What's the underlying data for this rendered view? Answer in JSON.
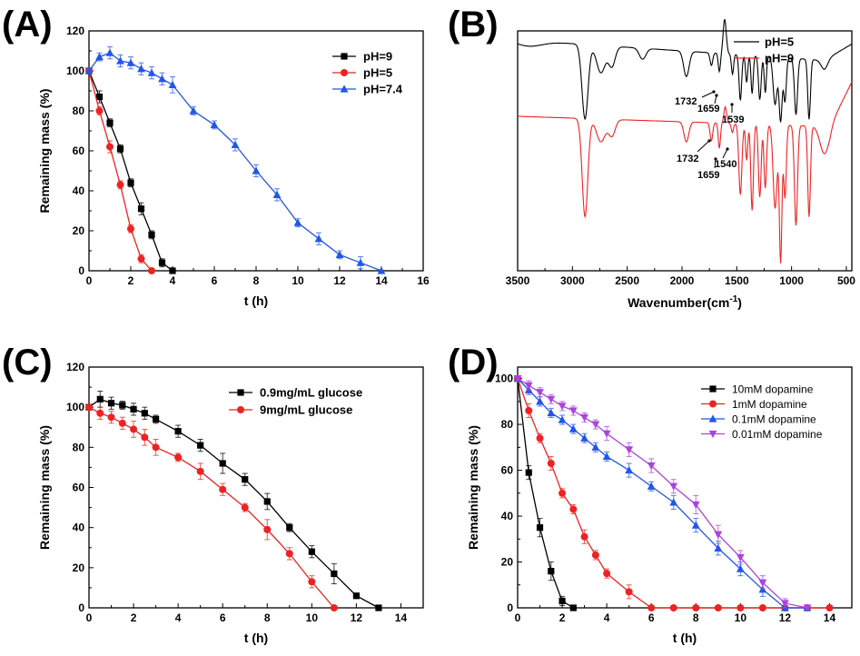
{
  "chart_data": [
    {
      "panel": "(A)",
      "type": "line",
      "xlabel": "t (h)",
      "ylabel": "Remaining mass (%)",
      "xlim": [
        0,
        16
      ],
      "ylim": [
        0,
        120
      ],
      "xticks": [
        0,
        2,
        4,
        6,
        8,
        10,
        12,
        14,
        16
      ],
      "yticks": [
        0,
        20,
        40,
        60,
        80,
        100,
        120
      ],
      "legend": "top-right",
      "series": [
        {
          "name": "pH=9",
          "color": "#000000",
          "marker": "square",
          "x": [
            0,
            0.5,
            1,
            1.5,
            2,
            2.5,
            3,
            3.5,
            4
          ],
          "y": [
            100,
            87,
            74,
            61,
            44,
            31,
            18,
            4,
            0
          ],
          "err": [
            0,
            3,
            2,
            2,
            2,
            3,
            2,
            2,
            0
          ]
        },
        {
          "name": "pH=5",
          "color": "#ee2222",
          "marker": "circle",
          "x": [
            0,
            0.5,
            1,
            1.5,
            2,
            2.5,
            3
          ],
          "y": [
            100,
            80,
            62,
            43,
            21,
            6,
            0
          ],
          "err": [
            0,
            2,
            3,
            2,
            2,
            2,
            0
          ]
        },
        {
          "name": "pH=7.4",
          "color": "#2255ee",
          "marker": "triangle",
          "x": [
            0,
            0.5,
            1,
            1.5,
            2,
            2.5,
            3,
            3.5,
            4,
            5,
            6,
            7,
            8,
            9,
            10,
            11,
            12,
            13,
            14
          ],
          "y": [
            100,
            107,
            109,
            105,
            104,
            101,
            99,
            96,
            93,
            80,
            73,
            63,
            50,
            38,
            24,
            16,
            8,
            4,
            0
          ],
          "err": [
            0,
            2,
            3,
            3,
            3,
            3,
            3,
            3,
            4,
            2,
            2,
            3,
            3,
            3,
            2,
            3,
            2,
            3,
            0
          ]
        }
      ]
    },
    {
      "panel": "(B)",
      "type": "line",
      "xlabel": "Wavenumber(cm",
      "xlabel_sup": "-1",
      "xlabel_end": ")",
      "xlim": [
        3500,
        450
      ],
      "xticks": [
        3500,
        3000,
        2500,
        2000,
        1500,
        1000,
        500
      ],
      "legend": "top-right",
      "series": [
        {
          "name": "pH=5",
          "color": "#000000"
        },
        {
          "name": "pH=9",
          "color": "#ee2222"
        }
      ],
      "annotations": [
        "1732",
        "1659",
        "1539",
        "1732",
        "1659",
        "1540"
      ]
    },
    {
      "panel": "(C)",
      "type": "line",
      "xlabel": "t (h)",
      "ylabel": "Remaining mass (%)",
      "xlim": [
        0,
        15
      ],
      "ylim": [
        0,
        120
      ],
      "xticks": [
        0,
        2,
        4,
        6,
        8,
        10,
        12,
        14
      ],
      "yticks": [
        0,
        20,
        40,
        60,
        80,
        100,
        120
      ],
      "legend": "top-right",
      "series": [
        {
          "name": "0.9mg/mL glucose",
          "color": "#000000",
          "marker": "square",
          "x": [
            0,
            0.5,
            1,
            1.5,
            2,
            2.5,
            3,
            4,
            5,
            6,
            7,
            8,
            9,
            10,
            11,
            12,
            13
          ],
          "y": [
            100,
            104,
            102,
            101,
            99,
            97,
            94,
            88,
            81,
            72,
            64,
            53,
            40,
            28,
            17,
            6,
            0
          ],
          "err": [
            0,
            4,
            3,
            2,
            3,
            3,
            2,
            3,
            3,
            5,
            3,
            4,
            2,
            3,
            5,
            1,
            0
          ]
        },
        {
          "name": "9mg/mL glucose",
          "color": "#ee2222",
          "marker": "circle",
          "x": [
            0,
            0.5,
            1,
            1.5,
            2,
            2.5,
            3,
            4,
            5,
            6,
            7,
            8,
            9,
            10,
            11
          ],
          "y": [
            100,
            97,
            95,
            92,
            89,
            85,
            80,
            75,
            68,
            59,
            50,
            39,
            27,
            13,
            0
          ],
          "err": [
            0,
            3,
            3,
            3,
            4,
            4,
            4,
            2,
            4,
            3,
            2,
            5,
            3,
            3,
            0
          ]
        }
      ]
    },
    {
      "panel": "(D)",
      "type": "line",
      "xlabel": "t (h)",
      "ylabel": "Remaining mass (%)",
      "xlim": [
        0,
        15
      ],
      "ylim": [
        0,
        105
      ],
      "xticks": [
        0,
        2,
        4,
        6,
        8,
        10,
        12,
        14
      ],
      "yticks": [
        0,
        20,
        40,
        60,
        80,
        100
      ],
      "legend": "top-right",
      "series": [
        {
          "name": "10mM dopamine",
          "color": "#000000",
          "marker": "square",
          "x": [
            0,
            0.5,
            1,
            1.5,
            2,
            2.5
          ],
          "y": [
            100,
            59,
            35,
            16,
            3,
            0
          ],
          "err": [
            0,
            3,
            4,
            4,
            2,
            0
          ]
        },
        {
          "name": "1mM dopamine",
          "color": "#ee2222",
          "marker": "circle",
          "x": [
            0,
            0.5,
            1,
            1.5,
            2,
            2.5,
            3,
            3.5,
            4,
            5,
            6,
            7,
            8,
            9,
            10,
            11,
            12,
            13,
            14
          ],
          "y": [
            100,
            86,
            74,
            63,
            50,
            43,
            31,
            23,
            15,
            7,
            0,
            0,
            0,
            0,
            0,
            0,
            0,
            0,
            0
          ],
          "err": [
            0,
            3,
            2,
            3,
            2,
            2,
            3,
            2,
            2,
            3,
            0,
            0,
            0,
            0,
            0,
            0,
            0,
            0,
            0
          ]
        },
        {
          "name": "0.1mM dopamine",
          "color": "#2255ee",
          "marker": "triangle",
          "x": [
            0,
            0.5,
            1,
            1.5,
            2,
            2.5,
            3,
            3.5,
            4,
            5,
            6,
            7,
            8,
            9,
            10,
            11,
            12,
            13
          ],
          "y": [
            100,
            95,
            90,
            85,
            82,
            78,
            74,
            70,
            66,
            60,
            53,
            46,
            36,
            26,
            17,
            8,
            0,
            0
          ],
          "err": [
            0,
            2,
            2,
            2,
            2,
            2,
            2,
            2,
            2,
            3,
            2,
            3,
            3,
            3,
            3,
            3,
            0,
            0
          ]
        },
        {
          "name": "0.01mM dopamine",
          "color": "#aa44dd",
          "marker": "triangle-down",
          "x": [
            0,
            0.5,
            1,
            1.5,
            2,
            2.5,
            3,
            3.5,
            4,
            5,
            6,
            7,
            8,
            9,
            10,
            11,
            12,
            13
          ],
          "y": [
            100,
            97,
            94,
            91,
            88,
            86,
            83,
            80,
            76,
            69,
            62,
            53,
            45,
            32,
            22,
            11,
            2,
            0
          ],
          "err": [
            0,
            2,
            2,
            2,
            2,
            2,
            2,
            2,
            3,
            3,
            3,
            3,
            4,
            4,
            3,
            3,
            2,
            0
          ]
        }
      ]
    }
  ]
}
